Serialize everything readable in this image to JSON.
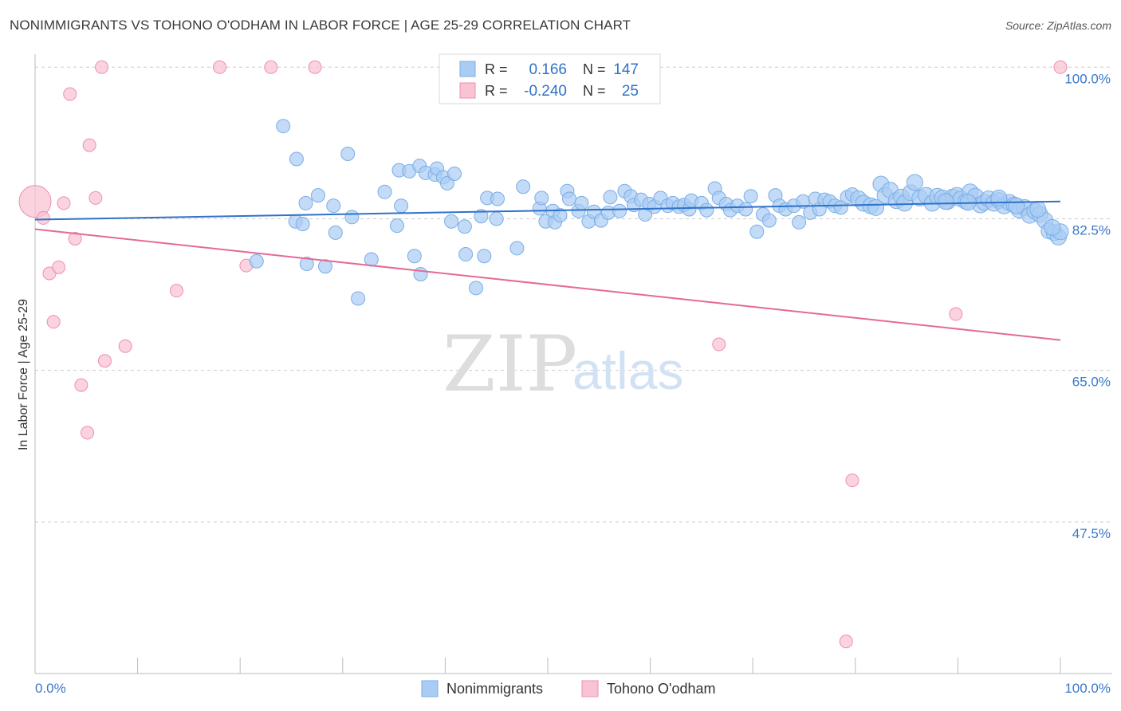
{
  "title": "NONIMMIGRANTS VS TOHONO O'ODHAM IN LABOR FORCE | AGE 25-29 CORRELATION CHART",
  "source": "Source: ZipAtlas.com",
  "watermark": {
    "zip": "ZIP",
    "atlas": "atlas"
  },
  "legend_box": {
    "rows": [
      {
        "r_label": "R =",
        "r_value": "0.166",
        "n_label": "N =",
        "n_value": "147"
      },
      {
        "r_label": "R =",
        "r_value": "-0.240",
        "n_label": "N =",
        "n_value": "25"
      }
    ]
  },
  "bottom_legend": [
    "Nonimmigrants",
    "Tohono O'odham"
  ],
  "colors": {
    "blue_fill": "#aaccf4",
    "blue_stroke": "#7aaee6",
    "blue_line": "#2f72c8",
    "pink_fill": "#f8c4d4",
    "pink_stroke": "#ee8fae",
    "pink_line": "#e46a94",
    "tick_text": "#3a78cc",
    "grid": "#cccccc"
  },
  "chart_data": {
    "type": "scatter",
    "title": "NONIMMIGRANTS VS TOHONO O'ODHAM IN LABOR FORCE | AGE 25-29 CORRELATION CHART",
    "xlabel": "",
    "ylabel": "In Labor Force | Age 25-29",
    "x_tick_labels": [
      "0.0%",
      "100.0%"
    ],
    "y_tick_labels": [
      "100.0%",
      "82.5%",
      "65.0%",
      "47.5%"
    ],
    "y_ticks": [
      100.0,
      82.5,
      65.0,
      47.5
    ],
    "xlim": [
      0,
      100
    ],
    "ylim": [
      30,
      101.5
    ],
    "grid": true,
    "legend_position": "top-center",
    "series": [
      {
        "name": "Nonimmigrants",
        "R": 0.166,
        "N": 147,
        "trend": [
          [
            0,
            82.4
          ],
          [
            100,
            84.5
          ]
        ],
        "points": [
          [
            24.2,
            93.2
          ],
          [
            25.5,
            89.4
          ],
          [
            30.5,
            90.0
          ],
          [
            27.6,
            85.2
          ],
          [
            26.4,
            84.3
          ],
          [
            29.1,
            84.0
          ],
          [
            34.1,
            85.6
          ],
          [
            35.5,
            88.1
          ],
          [
            36.5,
            88.0
          ],
          [
            37.5,
            88.6
          ],
          [
            38.1,
            87.8
          ],
          [
            39.0,
            87.6
          ],
          [
            39.2,
            88.3
          ],
          [
            39.8,
            87.3
          ],
          [
            40.2,
            86.6
          ],
          [
            40.9,
            87.7
          ],
          [
            25.4,
            82.2
          ],
          [
            26.1,
            81.9
          ],
          [
            29.3,
            80.9
          ],
          [
            30.9,
            82.7
          ],
          [
            35.3,
            81.7
          ],
          [
            35.7,
            84.0
          ],
          [
            40.6,
            82.2
          ],
          [
            41.9,
            81.6
          ],
          [
            43.5,
            82.8
          ],
          [
            44.1,
            84.9
          ],
          [
            45.0,
            82.5
          ],
          [
            45.1,
            84.8
          ],
          [
            47.6,
            86.2
          ],
          [
            49.2,
            83.7
          ],
          [
            49.4,
            84.9
          ],
          [
            49.8,
            82.2
          ],
          [
            50.5,
            83.4
          ],
          [
            50.7,
            82.1
          ],
          [
            51.2,
            82.9
          ],
          [
            51.9,
            85.7
          ],
          [
            52.1,
            84.8
          ],
          [
            53.0,
            83.4
          ],
          [
            53.3,
            84.3
          ],
          [
            54.0,
            82.2
          ],
          [
            54.5,
            83.3
          ],
          [
            55.2,
            82.3
          ],
          [
            55.9,
            83.2
          ],
          [
            56.1,
            85.0
          ],
          [
            57.0,
            83.4
          ],
          [
            57.5,
            85.7
          ],
          [
            58.1,
            85.1
          ],
          [
            58.4,
            84.1
          ],
          [
            59.1,
            84.7
          ],
          [
            59.5,
            83.0
          ],
          [
            59.9,
            84.2
          ],
          [
            60.4,
            83.9
          ],
          [
            61.0,
            84.9
          ],
          [
            61.7,
            84.0
          ],
          [
            62.2,
            84.3
          ],
          [
            62.8,
            83.9
          ],
          [
            63.3,
            84.1
          ],
          [
            63.8,
            83.6
          ],
          [
            64.0,
            84.6
          ],
          [
            65.0,
            84.3
          ],
          [
            65.5,
            83.5
          ],
          [
            66.3,
            86.0
          ],
          [
            66.7,
            84.9
          ],
          [
            67.4,
            84.2
          ],
          [
            67.8,
            83.5
          ],
          [
            68.5,
            84.0
          ],
          [
            69.3,
            83.6
          ],
          [
            69.8,
            85.1
          ],
          [
            70.4,
            81.0
          ],
          [
            71.0,
            83.0
          ],
          [
            71.6,
            82.3
          ],
          [
            72.2,
            85.2
          ],
          [
            72.6,
            84.0
          ],
          [
            73.2,
            83.6
          ],
          [
            74.0,
            84.0
          ],
          [
            74.5,
            82.1
          ],
          [
            74.9,
            84.5
          ],
          [
            75.6,
            83.2
          ],
          [
            76.1,
            84.8
          ],
          [
            76.5,
            83.6
          ],
          [
            77.0,
            84.7
          ],
          [
            77.5,
            84.5
          ],
          [
            78.0,
            84.0
          ],
          [
            78.6,
            83.8
          ],
          [
            79.2,
            85.0
          ],
          [
            79.7,
            85.3
          ],
          [
            80.3,
            84.8
          ],
          [
            80.8,
            84.3
          ],
          [
            81.5,
            84.0
          ],
          [
            82.0,
            83.8
          ],
          [
            82.5,
            86.5
          ],
          [
            82.9,
            85.2
          ],
          [
            83.4,
            85.8
          ],
          [
            84.0,
            84.6
          ],
          [
            84.5,
            85.0
          ],
          [
            84.8,
            84.3
          ],
          [
            85.4,
            85.5
          ],
          [
            85.8,
            86.7
          ],
          [
            86.3,
            84.9
          ],
          [
            86.9,
            85.2
          ],
          [
            87.5,
            84.3
          ],
          [
            88.0,
            85.1
          ],
          [
            88.5,
            84.9
          ],
          [
            89.0,
            84.5
          ],
          [
            89.5,
            85.0
          ],
          [
            89.9,
            85.2
          ],
          [
            90.3,
            84.8
          ],
          [
            90.8,
            84.5
          ],
          [
            91.2,
            85.6
          ],
          [
            91.7,
            85.1
          ],
          [
            92.2,
            84.1
          ],
          [
            92.6,
            84.4
          ],
          [
            93.0,
            84.8
          ],
          [
            93.5,
            84.3
          ],
          [
            94.0,
            84.6
          ],
          [
            94.5,
            84.0
          ],
          [
            95.0,
            84.4
          ],
          [
            95.5,
            84.1
          ],
          [
            96.0,
            83.5
          ],
          [
            96.5,
            83.8
          ],
          [
            97.0,
            82.9
          ],
          [
            97.5,
            83.4
          ],
          [
            98.0,
            83.0
          ],
          [
            98.5,
            82.3
          ],
          [
            98.9,
            81.1
          ],
          [
            99.4,
            80.9
          ],
          [
            99.8,
            80.4
          ],
          [
            21.6,
            77.6
          ],
          [
            26.5,
            77.3
          ],
          [
            28.3,
            77.0
          ],
          [
            32.8,
            77.8
          ],
          [
            37.0,
            78.2
          ],
          [
            37.6,
            76.1
          ],
          [
            42.0,
            78.4
          ],
          [
            43.8,
            78.2
          ],
          [
            47.0,
            79.1
          ],
          [
            31.5,
            73.3
          ],
          [
            43.0,
            74.5
          ],
          [
            94.0,
            84.9
          ],
          [
            91.0,
            84.4
          ],
          [
            88.8,
            84.5
          ],
          [
            95.7,
            84.0
          ],
          [
            97.8,
            83.6
          ],
          [
            100.0,
            81.0
          ],
          [
            99.2,
            81.5
          ]
        ]
      },
      {
        "name": "Tohono O'odham",
        "R": -0.24,
        "N": 25,
        "trend": [
          [
            0,
            81.3
          ],
          [
            100,
            68.5
          ]
        ],
        "points": [
          [
            0.0,
            84.5
          ],
          [
            0.8,
            82.6
          ],
          [
            1.4,
            76.2
          ],
          [
            1.8,
            70.6
          ],
          [
            2.3,
            76.9
          ],
          [
            2.8,
            84.3
          ],
          [
            3.4,
            96.9
          ],
          [
            3.9,
            80.2
          ],
          [
            4.5,
            63.3
          ],
          [
            5.1,
            57.8
          ],
          [
            5.3,
            91.0
          ],
          [
            5.9,
            84.9
          ],
          [
            6.5,
            100.0
          ],
          [
            6.8,
            66.1
          ],
          [
            8.8,
            67.8
          ],
          [
            13.8,
            74.2
          ],
          [
            18.0,
            100.0
          ],
          [
            20.6,
            77.1
          ],
          [
            23.0,
            100.0
          ],
          [
            27.3,
            100.0
          ],
          [
            66.7,
            68.0
          ],
          [
            79.1,
            33.7
          ],
          [
            79.7,
            52.3
          ],
          [
            89.8,
            71.5
          ],
          [
            100.0,
            100.0
          ]
        ]
      }
    ]
  }
}
